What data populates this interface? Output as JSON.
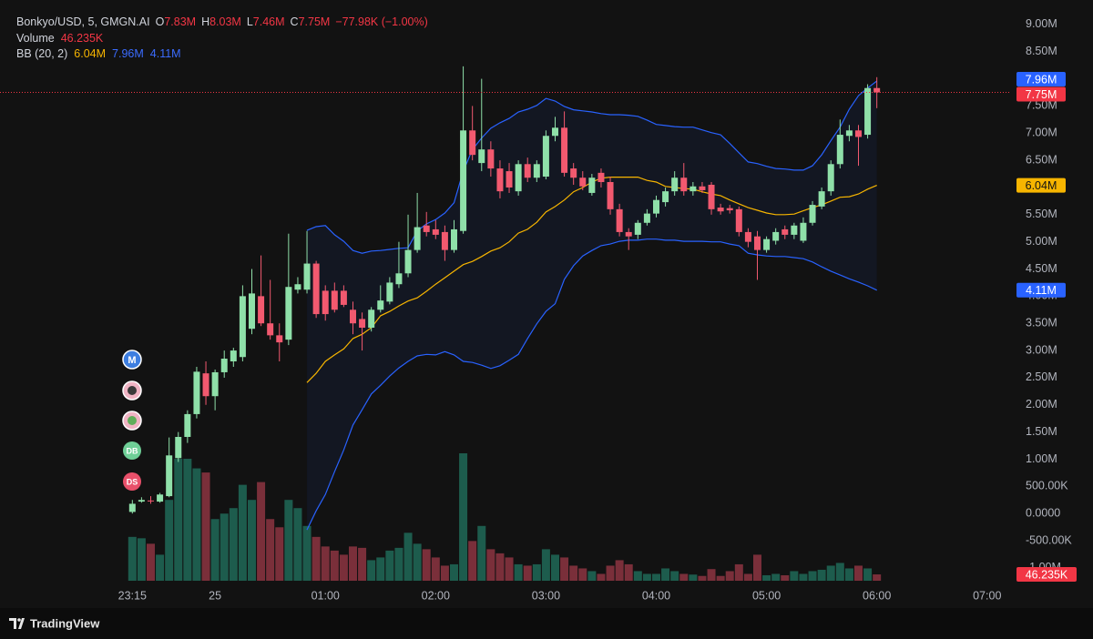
{
  "chart_data": {
    "type": "candlestick",
    "legend": {
      "symbol": "Bonkyo/USD, 5, GMGN.AI",
      "o": "O",
      "open": "7.83M",
      "h": "H",
      "high": "8.03M",
      "l": "L",
      "low": "7.46M",
      "c": "C",
      "close": "7.75M",
      "change": "−77.98K (−1.00%)",
      "bb_label": "BB (20, 2)",
      "bb_middle": "6.04M",
      "bb_upper": "7.96M",
      "bb_lower": "4.11M"
    },
    "x": [
      "23:15",
      "23:20",
      "23:25",
      "23:30",
      "23:35",
      "23:40",
      "23:45",
      "23:50",
      "23:55",
      "00:00",
      "00:05",
      "00:10",
      "00:15",
      "00:20",
      "00:25",
      "00:30",
      "00:35",
      "00:40",
      "00:45",
      "00:50",
      "00:55",
      "01:00",
      "01:05",
      "01:10",
      "01:15",
      "01:20",
      "01:25",
      "01:30",
      "01:35",
      "01:40",
      "01:45",
      "01:50",
      "01:55",
      "02:00",
      "02:05",
      "02:10",
      "02:15",
      "02:20",
      "02:25",
      "02:30",
      "02:35",
      "02:40",
      "02:45",
      "02:50",
      "02:55",
      "03:00",
      "03:05",
      "03:10",
      "03:15",
      "03:20",
      "03:25",
      "03:30",
      "03:35",
      "03:40",
      "03:45",
      "03:50",
      "03:55",
      "04:00",
      "04:05",
      "04:10",
      "04:15",
      "04:20",
      "04:25",
      "04:30",
      "04:35",
      "04:40",
      "04:45",
      "04:50",
      "04:55",
      "05:00",
      "05:05",
      "05:10",
      "05:15",
      "05:20",
      "05:25",
      "05:30",
      "05:35",
      "05:40",
      "05:45",
      "05:50",
      "05:55",
      "06:00"
    ],
    "xlim": [
      "22:03",
      "07:13"
    ],
    "xticks": [
      {
        "value": "23:15",
        "label": "23:15"
      },
      {
        "value": "00:00",
        "label": "25"
      },
      "01:00",
      "02:00",
      "03:00",
      "04:00",
      "05:00",
      "06:00",
      "07:00"
    ],
    "ylim": [
      -1270000,
      9450000
    ],
    "yticks": [
      {
        "value": 9000000,
        "label": "9.00M"
      },
      {
        "value": 8500000,
        "label": "8.50M"
      },
      {
        "value": 8000000,
        "label": "8.00M"
      },
      {
        "value": 7500000,
        "label": "7.50M"
      },
      {
        "value": 7000000,
        "label": "7.00M"
      },
      {
        "value": 6500000,
        "label": "6.50M"
      },
      {
        "value": 6000000,
        "label": "6.00M"
      },
      {
        "value": 5500000,
        "label": "5.50M"
      },
      {
        "value": 5000000,
        "label": "5.00M"
      },
      {
        "value": 4500000,
        "label": "4.50M"
      },
      {
        "value": 4000000,
        "label": "4.00M"
      },
      {
        "value": 3500000,
        "label": "3.50M"
      },
      {
        "value": 3000000,
        "label": "3.00M"
      },
      {
        "value": 2500000,
        "label": "2.50M"
      },
      {
        "value": 2000000,
        "label": "2.00M"
      },
      {
        "value": 1500000,
        "label": "1.50M"
      },
      {
        "value": 1000000,
        "label": "1.00M"
      },
      {
        "value": 500000,
        "label": "500.00K"
      },
      {
        "value": 0,
        "label": "0.0000"
      },
      {
        "value": -500000,
        "label": "-500.00K"
      },
      {
        "value": -1000000,
        "label": "-1.00M"
      }
    ],
    "grid": false,
    "candles": {
      "up_color": "#8fe0a9",
      "down_color": "#f2596f",
      "open": [
        30000,
        220000,
        240000,
        220000,
        320000,
        1020000,
        1410000,
        1830000,
        2580000,
        2160000,
        2600000,
        2800000,
        2880000,
        3400000,
        4000000,
        3500000,
        3280000,
        3200000,
        4120000,
        4120000,
        4600000,
        4100000,
        4100000,
        4100000,
        3750000,
        3580000,
        3420000,
        3750000,
        3900000,
        4220000,
        4420000,
        4850000,
        5300000,
        5230000,
        5180000,
        4850000,
        5200000,
        7050000,
        6450000,
        6700000,
        6350000,
        6300000,
        5930000,
        6430000,
        6180000,
        6200000,
        6950000,
        7100000,
        6350000,
        6180000,
        5900000,
        6270000,
        6100000,
        5600000,
        5180000,
        5130000,
        5350000,
        5520000,
        5730000,
        5930000,
        6180000,
        5930000,
        6020000,
        6050000,
        5630000,
        5620000,
        5600000,
        5180000,
        5100000,
        4850000,
        5020000,
        5230000,
        5130000,
        5020000,
        5350000,
        5650000,
        5930000,
        6430000,
        6950000,
        7050000,
        6970000,
        7830000
      ],
      "high": [
        250000,
        300000,
        320000,
        380000,
        1400000,
        1500000,
        1900000,
        2700000,
        2800000,
        2650000,
        3000000,
        3050000,
        4200000,
        4500000,
        4750000,
        4300000,
        3500000,
        5150000,
        4350000,
        5200000,
        4650000,
        4200000,
        4250000,
        4200000,
        3900000,
        3700000,
        3800000,
        4200000,
        4350000,
        5000000,
        5500000,
        5900000,
        5550000,
        5400000,
        5300000,
        5400000,
        8230000,
        7500000,
        8000000,
        6850000,
        6500000,
        6450000,
        6500000,
        6550000,
        6500000,
        7050000,
        7300000,
        7400000,
        6450000,
        6300000,
        6250000,
        6350000,
        6200000,
        5700000,
        5250000,
        5400000,
        5600000,
        5850000,
        6000000,
        6300000,
        6450000,
        6100000,
        6100000,
        6100000,
        5700000,
        5680000,
        5650000,
        5250000,
        5200000,
        5100000,
        5250000,
        5300000,
        5350000,
        5450000,
        5750000,
        6000000,
        6500000,
        7250000,
        7150000,
        7150000,
        7900000,
        8030000
      ],
      "low": [
        0,
        200000,
        180000,
        200000,
        300000,
        950000,
        1300000,
        1750000,
        2000000,
        1900000,
        2500000,
        2700000,
        2800000,
        3300000,
        3450000,
        3200000,
        2800000,
        3100000,
        4050000,
        4050000,
        3600000,
        3550000,
        3700000,
        3800000,
        3300000,
        3000000,
        3350000,
        3700000,
        3850000,
        4150000,
        4350000,
        4800000,
        5100000,
        5050000,
        4650000,
        4800000,
        5150000,
        6500000,
        6300000,
        6200000,
        5800000,
        5900000,
        5850000,
        6100000,
        6100000,
        6150000,
        6850000,
        6200000,
        6050000,
        5950000,
        5850000,
        6000000,
        5500000,
        5100000,
        4850000,
        5050000,
        5300000,
        5450000,
        5650000,
        5850000,
        5850000,
        5850000,
        5900000,
        5500000,
        5500000,
        5520000,
        5100000,
        4900000,
        4300000,
        4800000,
        4950000,
        5050000,
        5050000,
        4980000,
        5300000,
        5600000,
        5850000,
        6350000,
        6850000,
        6400000,
        6900000,
        7460000
      ],
      "close": [
        180000,
        250000,
        230000,
        350000,
        1070000,
        1410000,
        1830000,
        2610000,
        2160000,
        2600000,
        2850000,
        3000000,
        4000000,
        4050000,
        3500000,
        3280000,
        3150000,
        4170000,
        4220000,
        4600000,
        3670000,
        3670000,
        3750000,
        3840000,
        3500000,
        3420000,
        3750000,
        3920000,
        4250000,
        4420000,
        4850000,
        5270000,
        5180000,
        5130000,
        4850000,
        5230000,
        7050000,
        6600000,
        6700000,
        6350000,
        5930000,
        6000000,
        6430000,
        6180000,
        6430000,
        6950000,
        7100000,
        6270000,
        6180000,
        6020000,
        6180000,
        6100000,
        5600000,
        5180000,
        5100000,
        5350000,
        5520000,
        5770000,
        5930000,
        6180000,
        5930000,
        6020000,
        5950000,
        5600000,
        5560000,
        5580000,
        5180000,
        5000000,
        4850000,
        5050000,
        5180000,
        5130000,
        5300000,
        5350000,
        5680000,
        5930000,
        6430000,
        6970000,
        7050000,
        6930000,
        7830000,
        7750000
      ]
    },
    "volume": {
      "name": "Volume",
      "value_label": "46.235K",
      "up_color": "#1d5c4d",
      "down_color": "#7a2f3a",
      "values": [
        320000,
        310000,
        270000,
        190000,
        590000,
        890000,
        890000,
        820000,
        790000,
        450000,
        490000,
        530000,
        700000,
        590000,
        720000,
        450000,
        390000,
        590000,
        530000,
        400000,
        320000,
        250000,
        220000,
        190000,
        250000,
        240000,
        150000,
        170000,
        220000,
        240000,
        350000,
        270000,
        230000,
        170000,
        110000,
        120000,
        930000,
        290000,
        400000,
        230000,
        200000,
        170000,
        120000,
        110000,
        120000,
        230000,
        190000,
        170000,
        110000,
        90000,
        70000,
        50000,
        110000,
        150000,
        120000,
        70000,
        50000,
        50000,
        90000,
        70000,
        50000,
        45000,
        35000,
        85000,
        35000,
        70000,
        120000,
        50000,
        190000,
        40000,
        50000,
        40000,
        70000,
        50000,
        70000,
        80000,
        110000,
        130000,
        90000,
        110000,
        90000,
        46235
      ]
    },
    "bb_upper": {
      "color": "#2962ff",
      "values": [
        null,
        null,
        null,
        null,
        null,
        null,
        null,
        null,
        null,
        null,
        null,
        null,
        null,
        null,
        null,
        null,
        null,
        null,
        null,
        5210000,
        5280000,
        5300000,
        5130000,
        5010000,
        4840000,
        4790000,
        4830000,
        4840000,
        4860000,
        4880000,
        4890000,
        5200000,
        5330000,
        5410000,
        5530000,
        5720000,
        6300000,
        6700000,
        6910000,
        7090000,
        7190000,
        7270000,
        7390000,
        7440000,
        7510000,
        7640000,
        7590000,
        7490000,
        7430000,
        7410000,
        7390000,
        7360000,
        7340000,
        7340000,
        7330000,
        7310000,
        7240000,
        7160000,
        7140000,
        7120000,
        7110000,
        7110000,
        7060000,
        7010000,
        6970000,
        6810000,
        6640000,
        6470000,
        6440000,
        6390000,
        6350000,
        6340000,
        6320000,
        6320000,
        6400000,
        6600000,
        6860000,
        7110000,
        7440000,
        7690000,
        7830000,
        7960000
      ]
    },
    "bb_middle": {
      "color": "#f7b500",
      "values": [
        null,
        null,
        null,
        null,
        null,
        null,
        null,
        null,
        null,
        null,
        null,
        null,
        null,
        null,
        null,
        null,
        null,
        null,
        null,
        2410000,
        2580000,
        2800000,
        2920000,
        3030000,
        3220000,
        3300000,
        3420000,
        3640000,
        3720000,
        3820000,
        3910000,
        3970000,
        4090000,
        4220000,
        4340000,
        4460000,
        4580000,
        4640000,
        4730000,
        4830000,
        4890000,
        5000000,
        5160000,
        5230000,
        5360000,
        5550000,
        5650000,
        5770000,
        5920000,
        6000000,
        6100000,
        6170000,
        6190000,
        6190000,
        6190000,
        6190000,
        6130000,
        6100000,
        6020000,
        6000000,
        5980000,
        5970000,
        5920000,
        5880000,
        5850000,
        5770000,
        5700000,
        5630000,
        5580000,
        5530000,
        5500000,
        5500000,
        5510000,
        5570000,
        5630000,
        5680000,
        5750000,
        5820000,
        5830000,
        5880000,
        5970000,
        6040000
      ]
    },
    "bb_lower": {
      "color": "#2962ff",
      "values": [
        null,
        null,
        null,
        null,
        null,
        null,
        null,
        null,
        null,
        null,
        null,
        null,
        null,
        null,
        null,
        null,
        null,
        null,
        null,
        -300000,
        50000,
        350000,
        770000,
        1170000,
        1630000,
        1910000,
        2200000,
        2360000,
        2530000,
        2680000,
        2800000,
        2900000,
        2930000,
        2920000,
        2980000,
        2920000,
        2800000,
        2780000,
        2730000,
        2670000,
        2720000,
        2820000,
        2930000,
        3220000,
        3490000,
        3720000,
        3860000,
        4310000,
        4560000,
        4740000,
        4840000,
        4930000,
        4960000,
        5010000,
        5030000,
        5030000,
        5050000,
        5050000,
        5030000,
        5030000,
        5010000,
        5010000,
        5010000,
        5000000,
        5000000,
        4960000,
        4930000,
        4790000,
        4760000,
        4740000,
        4730000,
        4730000,
        4710000,
        4690000,
        4630000,
        4540000,
        4460000,
        4390000,
        4320000,
        4260000,
        4190000,
        4110000
      ]
    },
    "markers": [
      "M",
      "DB",
      "DS"
    ]
  },
  "footer": "TradingView"
}
